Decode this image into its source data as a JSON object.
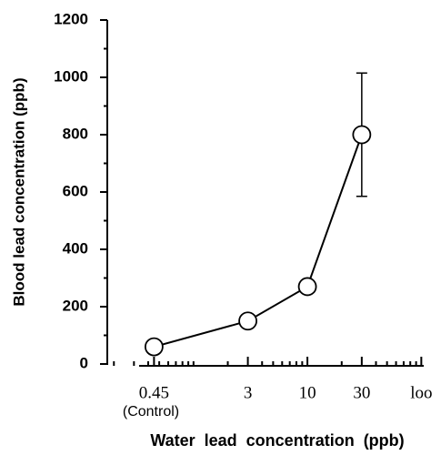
{
  "chart_data": {
    "type": "line",
    "x_label": "Water lead concentration (ppb)",
    "y_label": "Blood lead concentration (ppb)",
    "x_tick_note": "(Control)",
    "x_log": true,
    "x": [
      0.45,
      3,
      10,
      30
    ],
    "series": [
      {
        "name": "Blood lead",
        "color": "#000000",
        "values": [
          60,
          150,
          270,
          800
        ],
        "errors": [
          null,
          null,
          null,
          215
        ]
      }
    ],
    "xlim": [
      0.175,
      105
    ],
    "xticks": [
      0.45,
      3,
      10,
      {
        "value": 30,
        "label": "30"
      },
      {
        "value": 100,
        "label": "loo"
      }
    ],
    "xminorticks": [
      0.2,
      0.3,
      0.4,
      0.5,
      0.6,
      0.7,
      0.8,
      0.9,
      1,
      2,
      4,
      5,
      6,
      7,
      8,
      9,
      20,
      40,
      50,
      60,
      70,
      80,
      90
    ],
    "ylim": [
      0,
      1200
    ],
    "yticks": [
      0,
      200,
      400,
      600,
      800,
      1000,
      1200
    ],
    "yminorticks": [
      100,
      300,
      500,
      700,
      900,
      1100
    ]
  }
}
